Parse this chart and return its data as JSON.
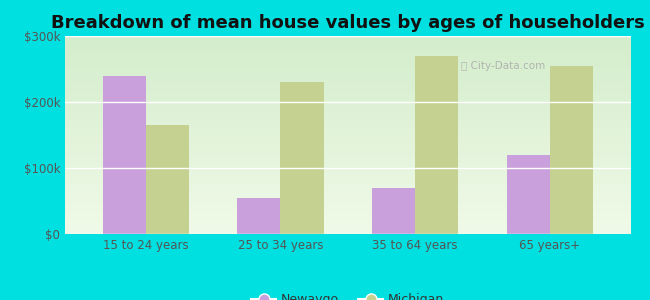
{
  "title": "Breakdown of mean house values by ages of householders",
  "categories": [
    "15 to 24 years",
    "25 to 34 years",
    "35 to 64 years",
    "65 years+"
  ],
  "newaygo": [
    240000,
    55000,
    70000,
    120000
  ],
  "michigan": [
    165000,
    230000,
    270000,
    255000
  ],
  "newaygo_color": "#c9a0dc",
  "michigan_color": "#c5d190",
  "background_top": "#d4edcc",
  "background_bottom": "#f0fae8",
  "outer_background": "#00e0e0",
  "ylim": [
    0,
    300000
  ],
  "yticks": [
    0,
    100000,
    200000,
    300000
  ],
  "ytick_labels": [
    "$0",
    "$100k",
    "$200k",
    "$300k"
  ],
  "legend_newaygo": "Newaygo",
  "legend_michigan": "Michigan",
  "title_fontsize": 13,
  "tick_fontsize": 8.5,
  "legend_fontsize": 9,
  "bar_width": 0.32
}
